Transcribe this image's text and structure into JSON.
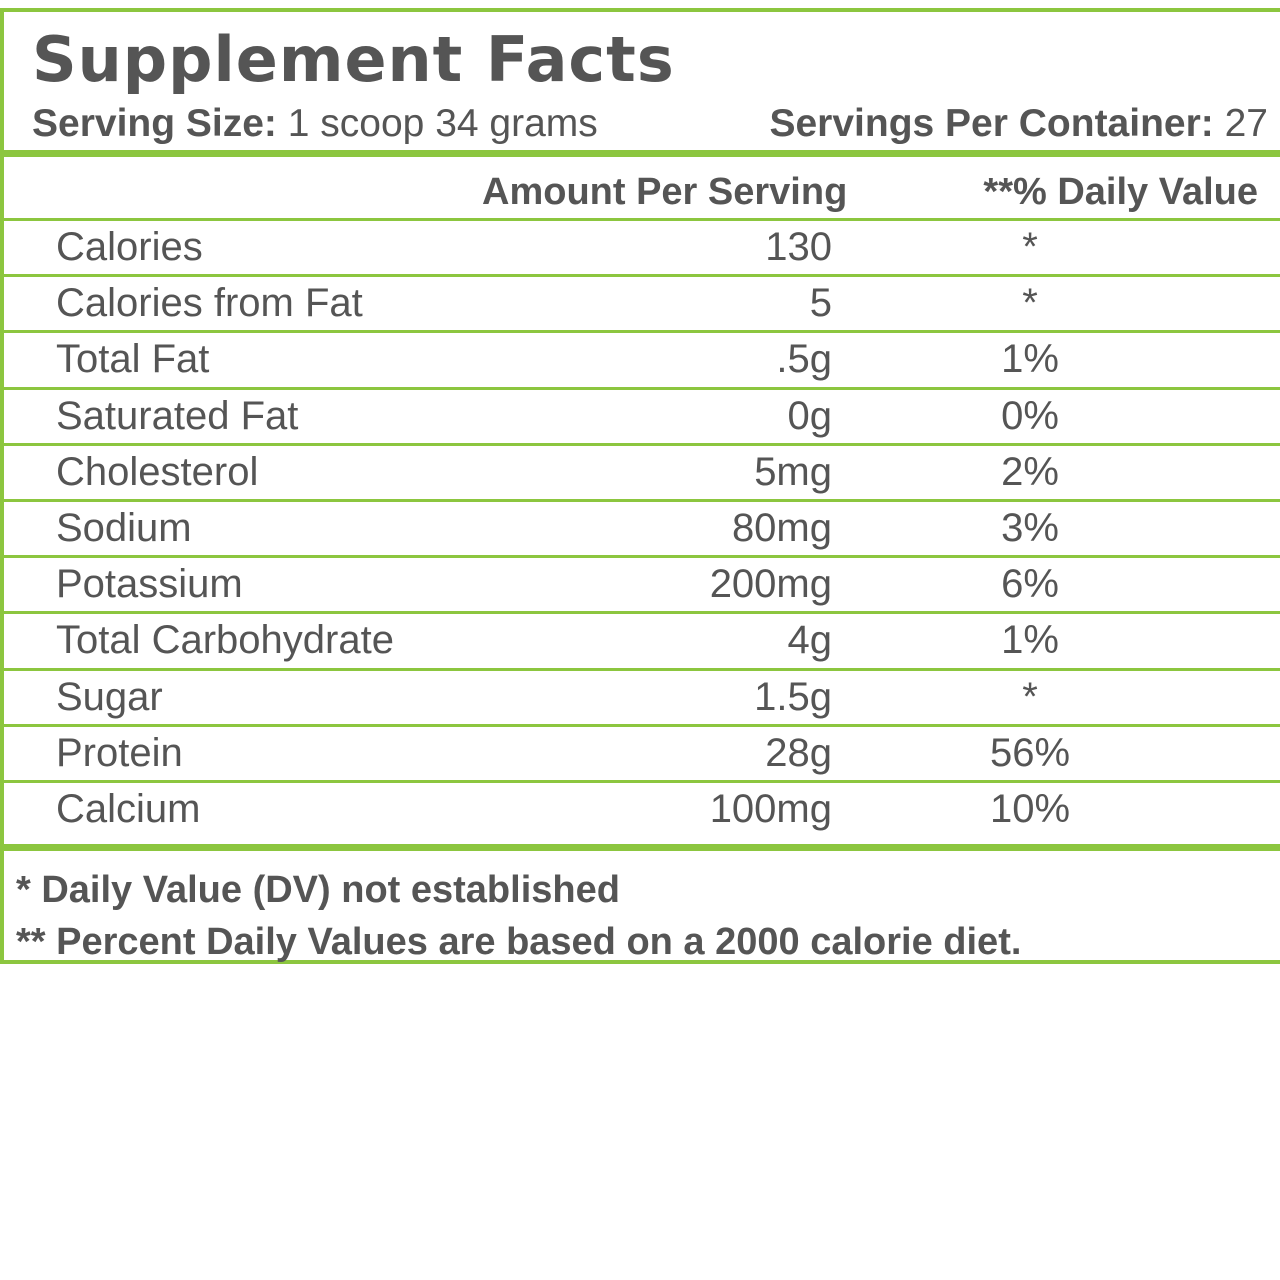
{
  "label": {
    "title": "Supplement Facts",
    "serving_size_label": "Serving Size:",
    "serving_size_value": "1 scoop 34 grams",
    "servings_per_container_label": "Servings Per Container:",
    "servings_per_container_value": "27",
    "column_amount": "Amount Per Serving",
    "column_daily_value": "**% Daily Value",
    "rows": [
      {
        "name": "Calories",
        "amount": "130",
        "dv": "*"
      },
      {
        "name": "Calories from Fat",
        "amount": "5",
        "dv": "*"
      },
      {
        "name": "Total Fat",
        "amount": ".5g",
        "dv": "1%"
      },
      {
        "name": "Saturated Fat",
        "amount": "0g",
        "dv": "0%"
      },
      {
        "name": "Cholesterol",
        "amount": "5mg",
        "dv": "2%"
      },
      {
        "name": "Sodium",
        "amount": "80mg",
        "dv": "3%"
      },
      {
        "name": "Potassium",
        "amount": "200mg",
        "dv": "6%"
      },
      {
        "name": "Total Carbohydrate",
        "amount": "4g",
        "dv": "1%"
      },
      {
        "name": "Sugar",
        "amount": "1.5g",
        "dv": "*"
      },
      {
        "name": "Protein",
        "amount": "28g",
        "dv": "56%"
      },
      {
        "name": "Calcium",
        "amount": "100mg",
        "dv": "10%"
      }
    ],
    "footnote_1": "* Daily Value (DV) not established",
    "footnote_2": "** Percent Daily Values are based on a 2000 calorie diet."
  },
  "colors": {
    "accent_green": "#8cc63f",
    "text_gray": "#555555"
  }
}
